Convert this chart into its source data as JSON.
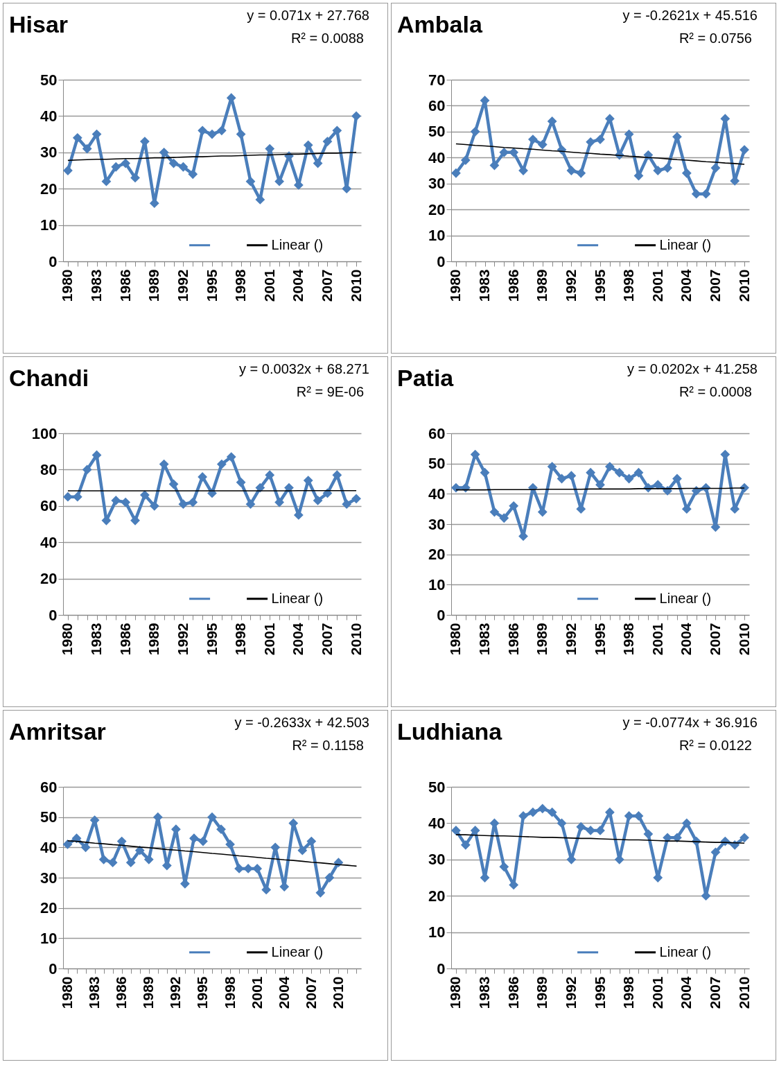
{
  "chart_data": [
    {
      "type": "line",
      "title": "Hisar",
      "annotations": [
        "y = 0.071x + 27.768",
        "R² = 0.0088"
      ],
      "categories": [
        "1980",
        null,
        null,
        "1983",
        null,
        null,
        "1986",
        null,
        null,
        "1989",
        null,
        null,
        "1992",
        null,
        null,
        "1995",
        null,
        null,
        "1998",
        null,
        null,
        "2001",
        null,
        null,
        "2004",
        null,
        null,
        "2007",
        null,
        null,
        "2010"
      ],
      "series": [
        {
          "color": "#4a7ebb",
          "values": [
            25,
            34,
            31,
            35,
            22,
            26,
            27,
            23,
            33,
            16,
            30,
            27,
            26,
            24,
            36,
            35,
            36,
            45,
            35,
            22,
            17,
            31,
            22,
            29,
            21,
            32,
            27,
            33,
            36,
            20,
            40
          ]
        },
        {
          "name": "Linear ()",
          "color": "#000000",
          "marker": "none",
          "values": [
            27.8,
            27.9,
            28.0,
            28.1,
            28.1,
            28.2,
            28.3,
            28.3,
            28.4,
            28.5,
            28.5,
            28.6,
            28.7,
            28.8,
            28.8,
            28.9,
            29.0,
            29.0,
            29.1,
            29.2,
            29.3,
            29.3,
            29.4,
            29.5,
            29.5,
            29.6,
            29.7,
            29.8,
            29.8,
            29.9,
            30.0
          ]
        }
      ],
      "ylim": [
        0,
        50
      ],
      "yticks": [
        0,
        10,
        20,
        30,
        40,
        50
      ],
      "grid": "y",
      "legend": "bottom right",
      "marker": "diamond"
    },
    {
      "type": "line",
      "title": "Ambala",
      "annotations": [
        "y = -0.2621x + 45.516",
        "R² = 0.0756"
      ],
      "categories": [
        "1980",
        null,
        null,
        "1983",
        null,
        null,
        "1986",
        null,
        null,
        "1989",
        null,
        null,
        "1992",
        null,
        null,
        "1995",
        null,
        null,
        "1998",
        null,
        null,
        "2001",
        null,
        null,
        "2004",
        null,
        null,
        "2007",
        null,
        null,
        "2010"
      ],
      "series": [
        {
          "color": "#4a7ebb",
          "values": [
            34,
            39,
            50,
            62,
            37,
            42,
            42,
            35,
            47,
            45,
            54,
            43,
            35,
            34,
            46,
            47,
            55,
            41,
            49,
            33,
            41,
            35,
            36,
            48,
            34,
            26,
            26,
            36,
            55,
            31,
            43
          ]
        },
        {
          "name": "Linear ()",
          "color": "#000000",
          "marker": "none",
          "values": [
            45.3,
            45.0,
            44.7,
            44.5,
            44.2,
            43.9,
            43.7,
            43.4,
            43.2,
            42.9,
            42.6,
            42.4,
            42.1,
            41.8,
            41.6,
            41.3,
            41.1,
            40.8,
            40.5,
            40.3,
            40.0,
            39.8,
            39.5,
            39.2,
            39.0,
            38.7,
            38.4,
            38.2,
            37.9,
            37.7,
            37.4
          ]
        }
      ],
      "ylim": [
        0,
        70
      ],
      "yticks": [
        0,
        10,
        20,
        30,
        40,
        50,
        60,
        70
      ],
      "grid": "y",
      "legend": "bottom right",
      "marker": "diamond"
    },
    {
      "type": "line",
      "title": "Chandi",
      "annotations": [
        "y = 0.0032x + 68.271",
        "R² = 9E-06"
      ],
      "categories": [
        "1980",
        null,
        null,
        "1983",
        null,
        null,
        "1986",
        null,
        null,
        "1989",
        null,
        null,
        "1992",
        null,
        null,
        "1995",
        null,
        null,
        "1998",
        null,
        null,
        "2001",
        null,
        null,
        "2004",
        null,
        null,
        "2007",
        null,
        null,
        "2010"
      ],
      "series": [
        {
          "color": "#4a7ebb",
          "values": [
            65,
            65,
            80,
            88,
            52,
            63,
            62,
            52,
            66,
            60,
            83,
            72,
            61,
            62,
            76,
            67,
            83,
            87,
            73,
            61,
            70,
            77,
            62,
            70,
            55,
            74,
            63,
            67,
            77,
            61,
            64
          ]
        },
        {
          "name": "Linear ()",
          "color": "#000000",
          "marker": "none",
          "values": [
            68.3,
            68.3,
            68.3,
            68.3,
            68.3,
            68.3,
            68.3,
            68.3,
            68.3,
            68.3,
            68.3,
            68.3,
            68.3,
            68.3,
            68.3,
            68.3,
            68.3,
            68.3,
            68.3,
            68.3,
            68.3,
            68.3,
            68.3,
            68.3,
            68.4,
            68.4,
            68.4,
            68.4,
            68.4,
            68.4,
            68.4
          ]
        }
      ],
      "ylim": [
        0,
        100
      ],
      "yticks": [
        0,
        20,
        40,
        60,
        80,
        100
      ],
      "grid": "y",
      "legend": "bottom right",
      "marker": "diamond"
    },
    {
      "type": "line",
      "title": "Patia",
      "annotations": [
        "y = 0.0202x + 41.258",
        "R² = 0.0008"
      ],
      "categories": [
        "1980",
        null,
        null,
        "1983",
        null,
        null,
        "1986",
        null,
        null,
        "1989",
        null,
        null,
        "1992",
        null,
        null,
        "1995",
        null,
        null,
        "1998",
        null,
        null,
        "2001",
        null,
        null,
        "2004",
        null,
        null,
        "2007",
        null,
        null,
        "2010"
      ],
      "series": [
        {
          "color": "#4a7ebb",
          "values": [
            42,
            42,
            53,
            47,
            34,
            32,
            36,
            26,
            42,
            34,
            49,
            45,
            46,
            35,
            47,
            43,
            49,
            47,
            45,
            47,
            42,
            43,
            41,
            45,
            35,
            41,
            42,
            29,
            53,
            35,
            42
          ]
        },
        {
          "name": "Linear ()",
          "color": "#000000",
          "marker": "none",
          "values": [
            41.3,
            41.3,
            41.3,
            41.3,
            41.4,
            41.4,
            41.4,
            41.4,
            41.4,
            41.5,
            41.5,
            41.5,
            41.5,
            41.5,
            41.6,
            41.6,
            41.6,
            41.6,
            41.6,
            41.7,
            41.7,
            41.7,
            41.7,
            41.7,
            41.8,
            41.8,
            41.8,
            41.8,
            41.8,
            41.9,
            41.9
          ]
        }
      ],
      "ylim": [
        0,
        60
      ],
      "yticks": [
        0,
        10,
        20,
        30,
        40,
        50,
        60
      ],
      "grid": "y",
      "legend": "bottom right",
      "marker": "diamond"
    },
    {
      "type": "line",
      "title": "Amritsar",
      "annotations": [
        "y = -0.2633x + 42.503",
        "R² = 0.1158"
      ],
      "categories": [
        "1980",
        null,
        null,
        "1983",
        null,
        null,
        "1986",
        null,
        null,
        "1989",
        null,
        null,
        "1992",
        null,
        null,
        "1995",
        null,
        null,
        "1998",
        null,
        null,
        "2001",
        null,
        null,
        "2004",
        null,
        null,
        "2007",
        null,
        null,
        "2010",
        null,
        null
      ],
      "series": [
        {
          "color": "#4a7ebb",
          "values": [
            41,
            43,
            40,
            49,
            36,
            35,
            42,
            35,
            39,
            36,
            50,
            34,
            46,
            28,
            43,
            42,
            50,
            46,
            41,
            33,
            33,
            33,
            26,
            40,
            27,
            48,
            39,
            42,
            25,
            30,
            35,
            null,
            null
          ]
        },
        {
          "name": "Linear ()",
          "color": "#000000",
          "marker": "none",
          "values": [
            42.2,
            42.0,
            41.7,
            41.4,
            41.2,
            40.9,
            40.7,
            40.4,
            40.1,
            39.9,
            39.6,
            39.3,
            39.1,
            38.8,
            38.6,
            38.3,
            38.0,
            37.8,
            37.5,
            37.2,
            37.0,
            36.7,
            36.4,
            36.2,
            35.9,
            35.7,
            35.4,
            35.1,
            34.9,
            34.6,
            34.3,
            34.1,
            33.8
          ]
        }
      ],
      "ylim": [
        0,
        60
      ],
      "yticks": [
        0,
        10,
        20,
        30,
        40,
        50,
        60
      ],
      "grid": "y",
      "legend": "bottom right",
      "marker": "diamond"
    },
    {
      "type": "line",
      "title": "Ludhiana",
      "annotations": [
        "y = -0.0774x + 36.916",
        "R² = 0.0122"
      ],
      "categories": [
        "1980",
        null,
        null,
        "1983",
        null,
        null,
        "1986",
        null,
        null,
        "1989",
        null,
        null,
        "1992",
        null,
        null,
        "1995",
        null,
        null,
        "1998",
        null,
        null,
        "2001",
        null,
        null,
        "2004",
        null,
        null,
        "2007",
        null,
        null,
        "2010"
      ],
      "series": [
        {
          "color": "#4a7ebb",
          "values": [
            38,
            34,
            38,
            25,
            40,
            28,
            23,
            42,
            43,
            44,
            43,
            40,
            30,
            39,
            38,
            38,
            43,
            30,
            42,
            42,
            37,
            25,
            36,
            36,
            40,
            35,
            20,
            32,
            35,
            34,
            36
          ]
        },
        {
          "name": "Linear ()",
          "color": "#000000",
          "marker": "none",
          "values": [
            36.8,
            36.8,
            36.7,
            36.6,
            36.5,
            36.5,
            36.4,
            36.3,
            36.2,
            36.1,
            36.1,
            36.0,
            35.9,
            35.8,
            35.8,
            35.7,
            35.6,
            35.5,
            35.4,
            35.4,
            35.3,
            35.2,
            35.1,
            35.1,
            35.0,
            34.9,
            34.8,
            34.7,
            34.7,
            34.6,
            34.5
          ]
        }
      ],
      "ylim": [
        0,
        50
      ],
      "yticks": [
        0,
        10,
        20,
        30,
        40,
        50
      ],
      "grid": "y",
      "legend": "bottom right",
      "marker": "diamond"
    }
  ]
}
